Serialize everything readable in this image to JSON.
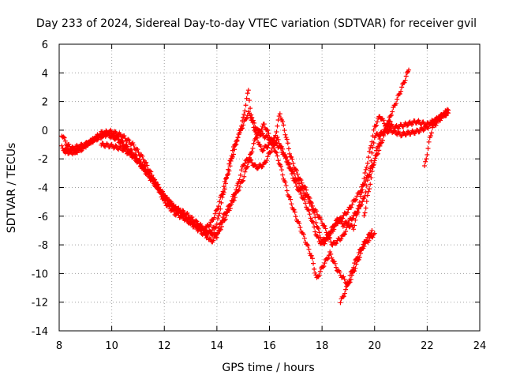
{
  "chart_data": {
    "type": "scatter",
    "title": "Day 233 of 2024, Sidereal Day-to-day VTEC variation (SDTVAR) for receiver gvil",
    "xlabel": "GPS time / hours",
    "ylabel": "SDTVAR / TECUs",
    "xlim": [
      8,
      24
    ],
    "ylim": [
      -14,
      6
    ],
    "xticks": [
      8,
      10,
      12,
      14,
      16,
      18,
      20,
      22,
      24
    ],
    "yticks": [
      -14,
      -12,
      -10,
      -8,
      -6,
      -4,
      -2,
      0,
      2,
      4,
      6
    ],
    "grid": true,
    "marker": "+",
    "color": "#ff0000",
    "series": [
      {
        "x": [
          8.1,
          8.3,
          8.6,
          9.0,
          9.4,
          9.8,
          10.2,
          10.6,
          11.0,
          11.4,
          11.8,
          12.0,
          12.4,
          12.8,
          13.2,
          13.5,
          13.8,
          14.0,
          14.2,
          14.4,
          14.6,
          14.8,
          15.0,
          15.2,
          15.3,
          15.5,
          15.7,
          16.0,
          16.2,
          16.4,
          16.6,
          16.8,
          17.0,
          17.2,
          17.4,
          17.6,
          17.8,
          18.0,
          18.2,
          18.4,
          18.6,
          18.8,
          19.0,
          19.2,
          19.4,
          19.6,
          19.8,
          20.0,
          20.3,
          20.6,
          21.0,
          21.3,
          21.6,
          22.0,
          22.4,
          22.8
        ],
        "y": [
          -0.3,
          -1.0,
          -1.5,
          -1.0,
          -0.6,
          -0.2,
          -0.5,
          -1.2,
          -2.0,
          -3.0,
          -4.0,
          -4.6,
          -5.4,
          -6.0,
          -6.6,
          -7.0,
          -6.4,
          -5.6,
          -4.4,
          -3.0,
          -1.4,
          -0.6,
          0.8,
          2.8,
          1.0,
          -0.4,
          -1.4,
          -1.0,
          -0.6,
          1.2,
          -0.2,
          -1.8,
          -2.8,
          -3.6,
          -4.2,
          -5.2,
          -6.6,
          -7.8,
          -7.4,
          -6.8,
          -6.2,
          -6.6,
          -6.4,
          -6.0,
          -5.4,
          -4.8,
          -3.0,
          -0.4,
          -0.2,
          0.0,
          -0.3,
          -0.2,
          -0.1,
          0.2,
          0.8,
          1.2
        ]
      },
      {
        "x": [
          8.2,
          8.6,
          9.0,
          9.4,
          9.8,
          10.2,
          10.6,
          11.0,
          11.4,
          11.8,
          12.2,
          12.6,
          13.0,
          13.4,
          13.8,
          14.0,
          14.2,
          14.5,
          14.8,
          15.0,
          15.2,
          15.5,
          15.8,
          16.0,
          16.3,
          16.6,
          17.0,
          17.3,
          17.6,
          17.8,
          18.0,
          18.2,
          18.6,
          19.0,
          19.4,
          19.8,
          20.2,
          20.6,
          21.0,
          21.3
        ],
        "y": [
          -1.5,
          -1.2,
          -1.0,
          -0.6,
          -0.3,
          -0.6,
          -1.4,
          -2.2,
          -3.2,
          -4.2,
          -5.2,
          -5.8,
          -6.4,
          -6.8,
          -7.8,
          -7.2,
          -6.2,
          -5.2,
          -3.8,
          -2.4,
          -2.0,
          -2.6,
          -2.4,
          -1.6,
          -0.6,
          -1.8,
          -3.8,
          -4.8,
          -6.2,
          -7.4,
          -8.0,
          -7.6,
          -6.4,
          -5.6,
          -4.4,
          -3.0,
          -1.2,
          1.0,
          2.8,
          4.2
        ]
      },
      {
        "x": [
          9.6,
          10.0,
          10.4,
          10.8,
          11.2,
          11.6,
          12.0,
          12.4,
          12.8,
          13.2,
          13.6,
          14.0,
          14.4,
          14.8,
          15.0,
          15.2,
          15.5,
          15.8,
          16.1,
          16.4,
          16.7,
          17.0,
          17.3,
          17.6,
          17.8,
          18.0,
          18.3,
          18.6,
          19.0,
          19.3,
          19.6,
          20.0
        ],
        "y": [
          -1.0,
          -1.1,
          -1.3,
          -1.8,
          -2.6,
          -3.6,
          -4.6,
          -5.4,
          -5.8,
          -6.4,
          -7.0,
          -7.4,
          -5.8,
          -4.2,
          -3.4,
          -2.2,
          -0.4,
          0.4,
          -0.8,
          -2.4,
          -4.4,
          -6.0,
          -7.4,
          -8.8,
          -10.4,
          -9.6,
          -8.6,
          -9.8,
          -10.8,
          -9.4,
          -8.0,
          -7.2
        ]
      },
      {
        "x": [
          8.1,
          8.4,
          8.8,
          9.2,
          9.6,
          10.0,
          10.4,
          10.8,
          11.2,
          11.6,
          12.0,
          12.4,
          12.8,
          13.2,
          13.6,
          14.0,
          14.2,
          14.4,
          14.6,
          14.8,
          15.0,
          15.2,
          15.6,
          16.0,
          16.4,
          16.8,
          17.2,
          17.6,
          18.0,
          18.2,
          18.4,
          18.8,
          19.0,
          19.2,
          19.4,
          19.6,
          19.8,
          20.0,
          20.2,
          20.4,
          20.8,
          21.2,
          21.6,
          22.0,
          22.4,
          22.8
        ],
        "y": [
          -1.2,
          -1.6,
          -1.4,
          -0.8,
          -0.2,
          -0.1,
          -0.4,
          -1.0,
          -2.0,
          -3.4,
          -5.0,
          -5.8,
          -6.2,
          -6.8,
          -7.4,
          -6.6,
          -4.8,
          -3.2,
          -1.8,
          -0.4,
          0.4,
          1.2,
          -0.2,
          -0.6,
          -1.2,
          -2.6,
          -4.0,
          -5.2,
          -6.4,
          -7.2,
          -8.0,
          -7.4,
          -6.6,
          -6.8,
          -5.4,
          -3.4,
          -1.6,
          0.2,
          1.0,
          0.4,
          0.2,
          0.4,
          0.6,
          0.4,
          0.8,
          1.4
        ]
      },
      {
        "x": [
          18.7,
          18.9,
          19.1,
          19.3,
          19.5,
          19.7,
          19.9
        ],
        "y": [
          -12.0,
          -11.2,
          -10.0,
          -9.0,
          -8.2,
          -7.6,
          -7.0
        ]
      },
      {
        "x": [
          19.6,
          19.8,
          20.0,
          20.2,
          20.4,
          20.6
        ],
        "y": [
          -6.0,
          -4.0,
          -2.0,
          -0.6,
          0.2,
          0.6
        ]
      },
      {
        "x": [
          21.9,
          22.0,
          22.1,
          22.2,
          22.4,
          22.6,
          22.8
        ],
        "y": [
          -2.6,
          -1.6,
          -0.6,
          0.2,
          0.6,
          1.0,
          1.4
        ]
      }
    ]
  }
}
